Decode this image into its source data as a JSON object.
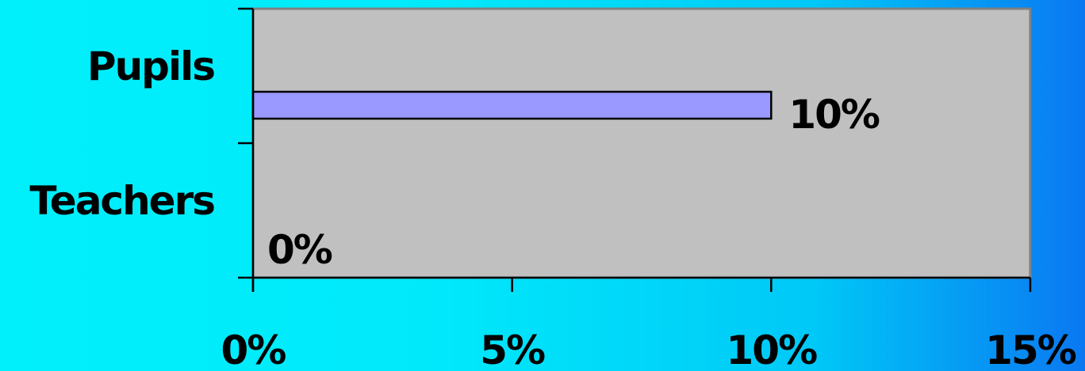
{
  "chart_data": {
    "type": "bar",
    "orientation": "horizontal",
    "categories": [
      "Pupils",
      "Teachers"
    ],
    "values": [
      10,
      0
    ],
    "data_labels": [
      "10%",
      "0%"
    ],
    "xlim": [
      0,
      15
    ],
    "x_ticks": [
      0,
      5,
      10,
      15
    ],
    "x_tick_labels": [
      "0%",
      "5%",
      "10%",
      "15%"
    ],
    "title": "",
    "xlabel": "",
    "ylabel": "",
    "grid": false,
    "legend": "none",
    "colors": {
      "plot_background": "#c0c0c0",
      "bar_fill": "#9999ff",
      "bar_stroke": "#000000",
      "plot_border": "#808080",
      "axis": "#000000",
      "text": "#000000"
    }
  }
}
